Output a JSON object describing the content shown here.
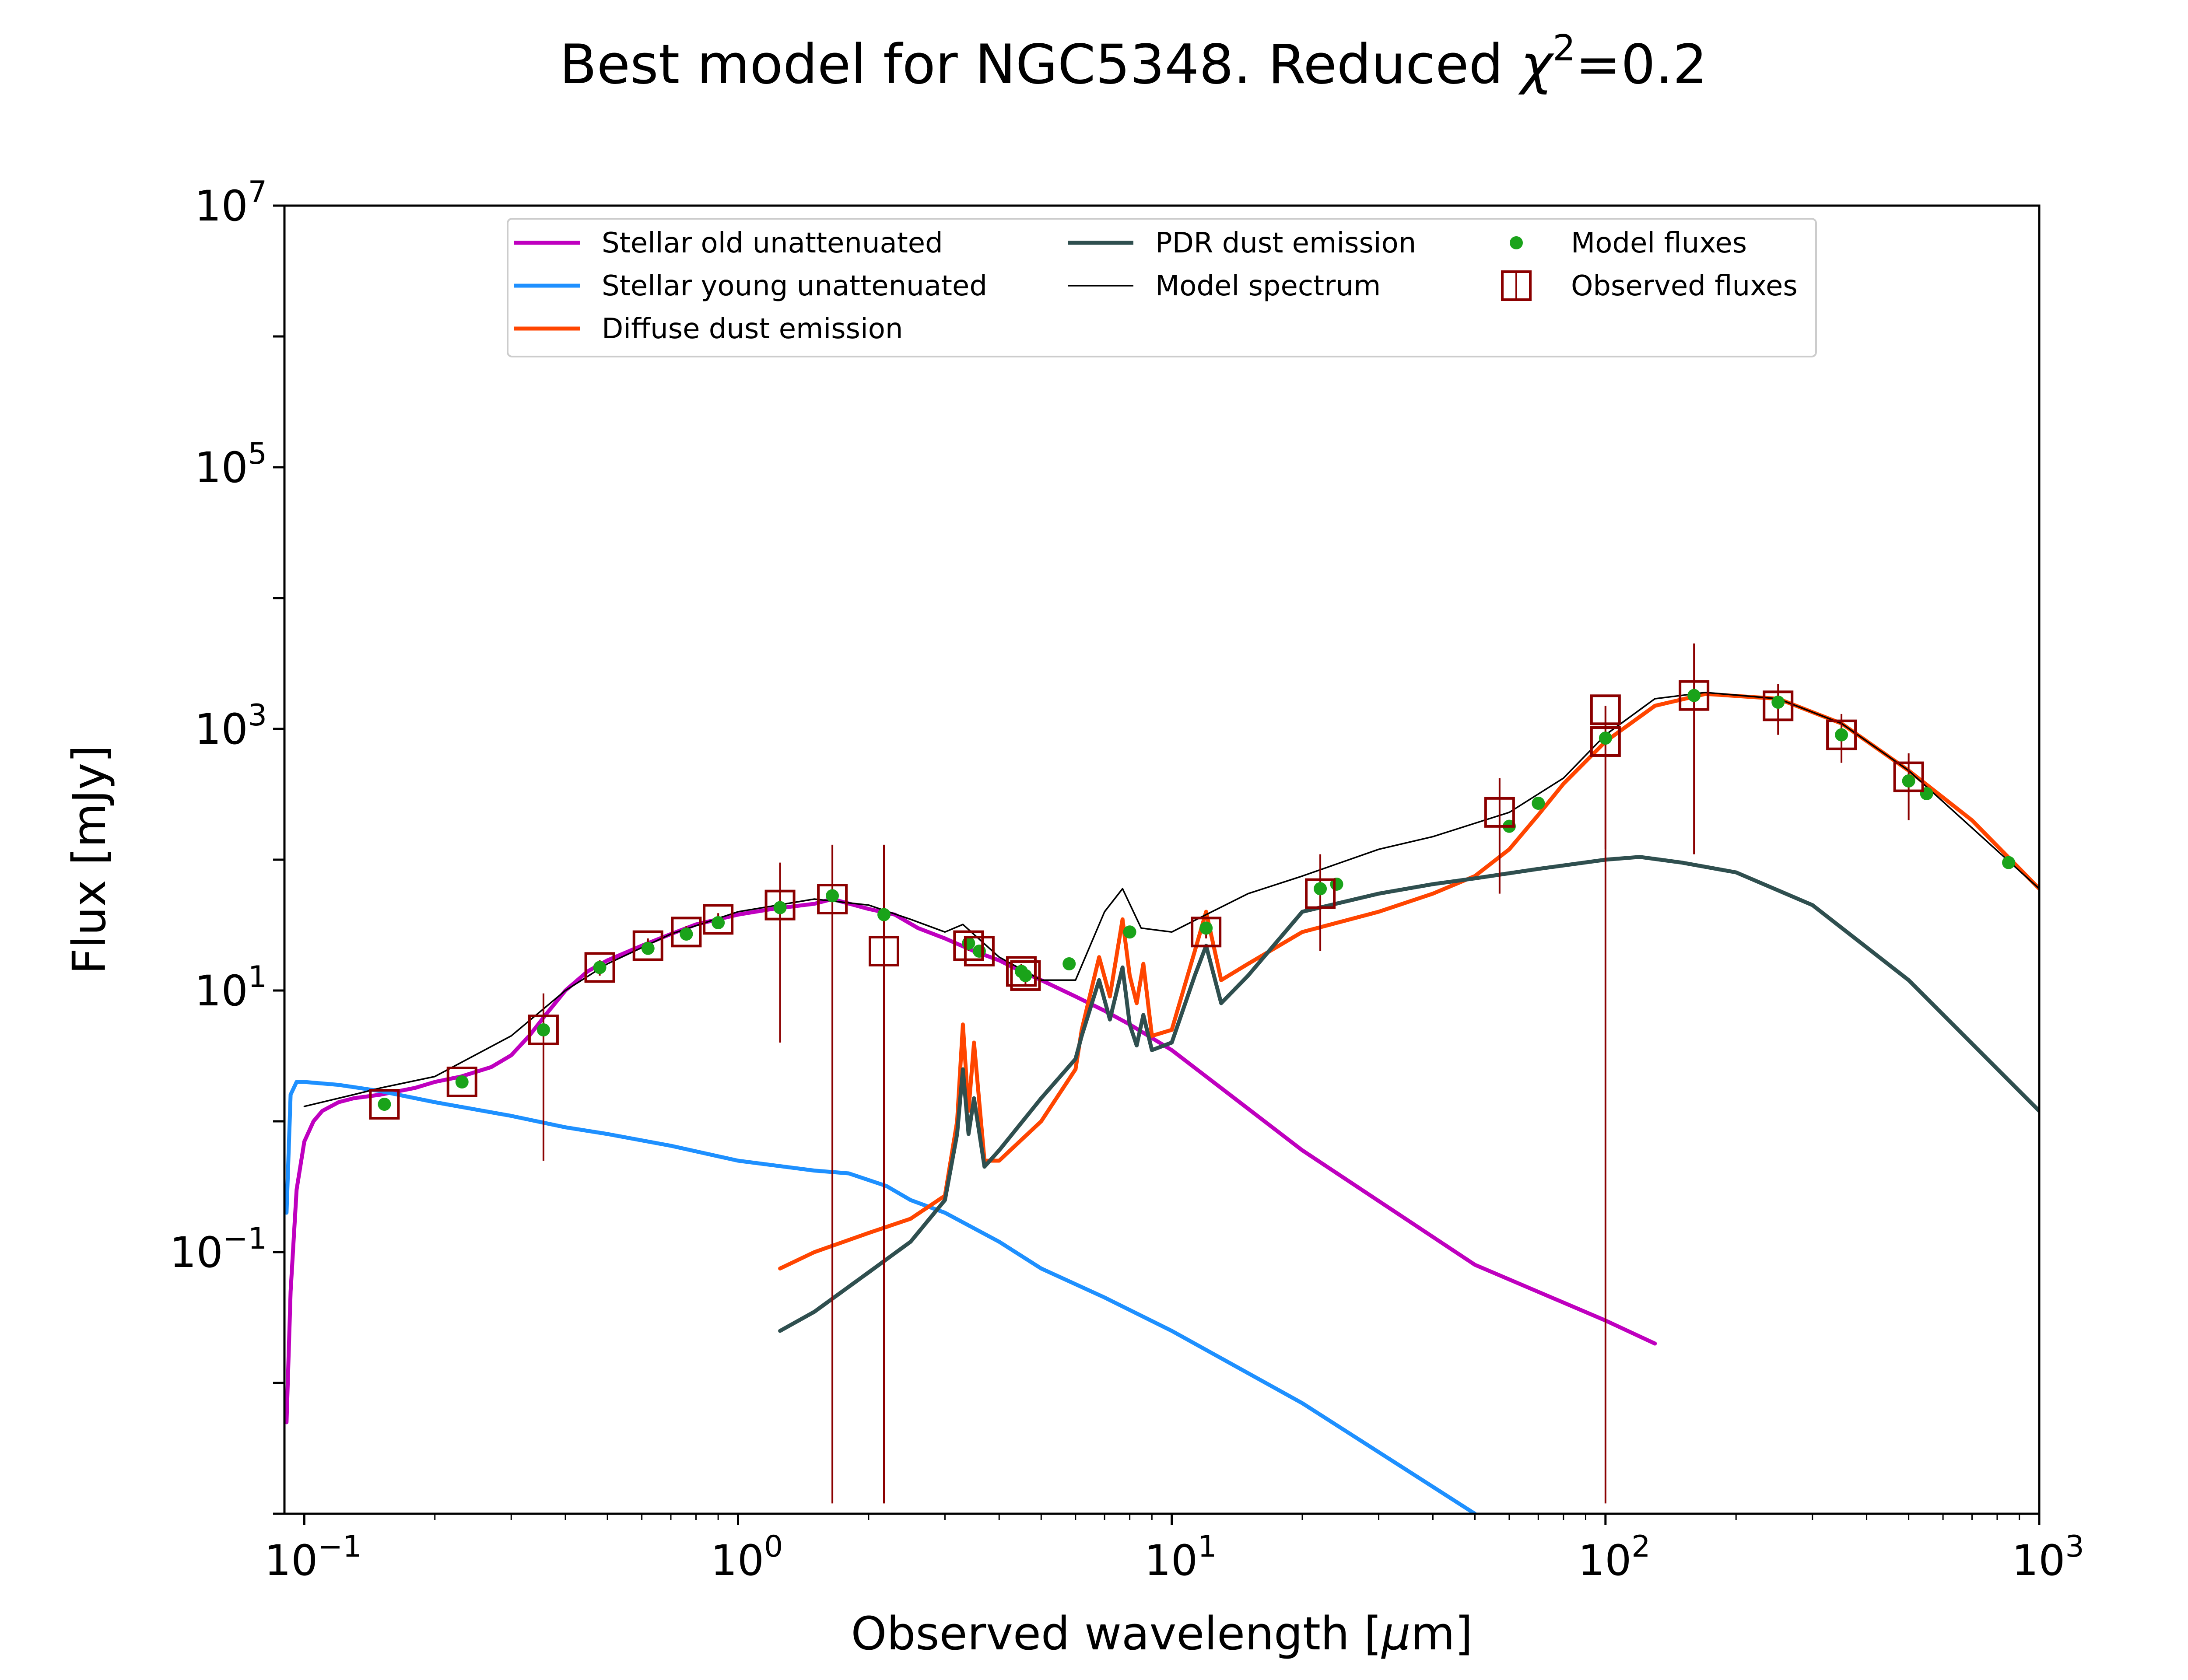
{
  "title": {
    "text": "Best model for NGC5348. Reduced ",
    "chi": "χ",
    "sup": "2",
    "tail": "=0.2"
  },
  "xlabel": {
    "pre": "Observed wavelength [",
    "mu": "μ",
    "post": "m]"
  },
  "ylabel": "Flux [mJy]",
  "x_ticks": [
    {
      "value": 0.1,
      "base": "10",
      "exp": "−1"
    },
    {
      "value": 1,
      "base": "10",
      "exp": "0"
    },
    {
      "value": 10,
      "base": "10",
      "exp": "1"
    },
    {
      "value": 100,
      "base": "10",
      "exp": "2"
    },
    {
      "value": 1000,
      "base": "10",
      "exp": "3"
    }
  ],
  "y_ticks": [
    {
      "value": 0.1,
      "base": "10",
      "exp": "−1"
    },
    {
      "value": 10,
      "base": "10",
      "exp": "1"
    },
    {
      "value": 1000,
      "base": "10",
      "exp": "3"
    },
    {
      "value": 100000,
      "base": "10",
      "exp": "5"
    },
    {
      "value": 10000000,
      "base": "10",
      "exp": "7"
    }
  ],
  "legend": [
    {
      "label": "Stellar old unattenuated",
      "kind": "line",
      "color": "#bf00bf",
      "width": 3
    },
    {
      "label": "Stellar young unattenuated",
      "kind": "line",
      "color": "#1e90ff",
      "width": 3
    },
    {
      "label": "Diffuse dust emission",
      "kind": "line",
      "color": "#ff4500",
      "width": 3
    },
    {
      "label": "PDR dust emission",
      "kind": "line",
      "color": "#2f4f4f",
      "width": 3
    },
    {
      "label": "Model spectrum",
      "kind": "line",
      "color": "#000000",
      "width": 1.2
    },
    {
      "label": "Model fluxes",
      "kind": "dot",
      "color": "#1aa31a"
    },
    {
      "label": "Observed fluxes",
      "kind": "square",
      "color": "#8b0000"
    }
  ],
  "chart_data": {
    "type": "line",
    "title": "Best model for NGC5348. Reduced χ²=0.2",
    "xlabel": "Observed wavelength [μm]",
    "ylabel": "Flux [mJy]",
    "xscale": "log",
    "yscale": "log",
    "xlim": [
      0.09,
      1000
    ],
    "ylim": [
      0.001,
      10000000
    ],
    "legend_position": "top-center",
    "series": [
      {
        "name": "Stellar old unattenuated",
        "color": "#bf00bf",
        "x": [
          0.091,
          0.093,
          0.096,
          0.1,
          0.105,
          0.11,
          0.12,
          0.13,
          0.15,
          0.18,
          0.2,
          0.23,
          0.27,
          0.3,
          0.33,
          0.36,
          0.4,
          0.45,
          0.5,
          0.6,
          0.7,
          0.8,
          1.0,
          1.2,
          1.5,
          1.65,
          2.0,
          2.3,
          2.6,
          3.0,
          3.5,
          4.0,
          4.5,
          5.0,
          6.0,
          7.0,
          8.0,
          10.0,
          20.0,
          50.0,
          100.0,
          130.0
        ],
        "y": [
          0.005,
          0.05,
          0.3,
          0.7,
          1.0,
          1.2,
          1.4,
          1.5,
          1.6,
          1.8,
          2.0,
          2.2,
          2.6,
          3.2,
          4.5,
          6.5,
          10,
          14,
          17,
          22,
          27,
          32,
          38,
          42,
          46,
          50,
          42,
          38,
          30,
          25,
          20,
          17,
          14,
          12,
          9,
          7,
          5.5,
          3.5,
          0.6,
          0.08,
          0.03,
          0.02
        ]
      },
      {
        "name": "Stellar young unattenuated",
        "color": "#1e90ff",
        "x": [
          0.091,
          0.093,
          0.096,
          0.1,
          0.12,
          0.15,
          0.2,
          0.3,
          0.4,
          0.5,
          0.7,
          1.0,
          1.5,
          1.8,
          2.2,
          2.5,
          3.0,
          4.0,
          5.0,
          7.0,
          10.0,
          20.0,
          50.0
        ],
        "y": [
          0.2,
          1.6,
          2.0,
          2.0,
          1.9,
          1.7,
          1.4,
          1.1,
          0.9,
          0.8,
          0.65,
          0.5,
          0.42,
          0.4,
          0.32,
          0.25,
          0.2,
          0.12,
          0.075,
          0.045,
          0.025,
          0.007,
          0.001
        ]
      },
      {
        "name": "Diffuse dust emission",
        "color": "#ff4500",
        "x": [
          1.25,
          1.5,
          2.0,
          2.5,
          3.0,
          3.2,
          3.3,
          3.4,
          3.5,
          3.7,
          4.0,
          5.0,
          6.0,
          6.2,
          6.8,
          7.2,
          7.7,
          8.0,
          8.3,
          8.6,
          9.0,
          10.0,
          11.3,
          12.0,
          13.0,
          15.0,
          20.0,
          30.0,
          40.0,
          50.0,
          60.0,
          70.0,
          80.0,
          100.0,
          130.0,
          170.0,
          250.0,
          350.0,
          500.0,
          700.0,
          1000.0
        ],
        "y": [
          0.075,
          0.1,
          0.14,
          0.18,
          0.27,
          1.0,
          5.5,
          1.2,
          4.0,
          0.5,
          0.5,
          1.0,
          2.5,
          5.0,
          18,
          9,
          35,
          13,
          8,
          16,
          4.5,
          5.0,
          20,
          40,
          12,
          16,
          28,
          40,
          55,
          75,
          120,
          220,
          380,
          800,
          1500,
          1850,
          1700,
          1100,
          480,
          200,
          60
        ]
      },
      {
        "name": "PDR dust emission",
        "color": "#2f4f4f",
        "x": [
          1.25,
          1.5,
          2.0,
          2.5,
          3.0,
          3.2,
          3.3,
          3.4,
          3.5,
          3.7,
          4.0,
          5.0,
          6.0,
          6.2,
          6.8,
          7.2,
          7.7,
          8.0,
          8.3,
          8.6,
          9.0,
          10.0,
          11.3,
          12.0,
          13.0,
          15.0,
          20.0,
          30.0,
          40.0,
          50.0,
          70.0,
          100.0,
          120.0,
          150.0,
          200.0,
          300.0,
          500.0,
          1000.0
        ],
        "y": [
          0.025,
          0.035,
          0.07,
          0.12,
          0.25,
          0.8,
          2.5,
          0.8,
          1.5,
          0.45,
          0.6,
          1.5,
          3.0,
          4.5,
          12,
          6,
          15,
          5.5,
          3.8,
          6.5,
          3.5,
          4.0,
          13,
          22,
          8,
          13,
          40,
          55,
          65,
          72,
          85,
          100,
          105,
          95,
          80,
          45,
          12,
          1.2
        ]
      },
      {
        "name": "Model spectrum",
        "color": "#000000",
        "x": [
          0.1,
          0.13,
          0.15,
          0.2,
          0.3,
          0.4,
          0.5,
          0.7,
          1.0,
          1.5,
          2.0,
          2.5,
          3.0,
          3.3,
          4.0,
          5.0,
          6.0,
          7.0,
          7.7,
          8.5,
          10.0,
          12.0,
          15.0,
          20.0,
          30.0,
          40.0,
          60.0,
          80.0,
          100.0,
          130.0,
          170.0,
          250.0,
          350.0,
          500.0,
          1000.0
        ],
        "y": [
          1.3,
          1.6,
          1.8,
          2.2,
          4.5,
          10,
          16,
          27,
          40,
          50,
          45,
          35,
          28,
          32,
          18,
          12,
          12,
          40,
          60,
          30,
          28,
          38,
          55,
          75,
          120,
          150,
          230,
          420,
          900,
          1700,
          1900,
          1700,
          1100,
          480,
          60
        ]
      }
    ],
    "model_fluxes": {
      "name": "Model fluxes",
      "x": [
        0.153,
        0.231,
        0.356,
        0.48,
        0.62,
        0.76,
        0.9,
        1.25,
        1.65,
        2.17,
        3.4,
        3.6,
        4.5,
        4.6,
        5.8,
        8.0,
        12.0,
        22.0,
        24.0,
        60.0,
        70.0,
        100.0,
        160.0,
        250.0,
        350.0,
        500.0,
        550.0,
        850.0
      ],
      "y": [
        1.35,
        2.0,
        5.0,
        15,
        21,
        27,
        33,
        43,
        53,
        38,
        23,
        20,
        14,
        13,
        16,
        28,
        30,
        60,
        65,
        180,
        270,
        850,
        1800,
        1600,
        900,
        400,
        320,
        95
      ]
    },
    "observed_fluxes": {
      "name": "Observed fluxes",
      "x": [
        0.153,
        0.231,
        0.356,
        0.48,
        0.62,
        0.76,
        0.9,
        1.25,
        1.65,
        2.17,
        3.4,
        3.6,
        4.5,
        4.6,
        12.0,
        22.0,
        57.0,
        100.0,
        100.0,
        160.0,
        250.0,
        350.0,
        500.0
      ],
      "y": [
        1.35,
        2.0,
        5.0,
        15,
        22,
        28,
        35,
        45,
        50,
        20,
        22,
        20,
        14,
        13,
        28,
        55,
        230,
        1400,
        800,
        1800,
        1500,
        900,
        430
      ],
      "y_err_low": [
        1.25,
        1.85,
        0.5,
        13,
        19,
        25,
        31,
        4,
        0.0012,
        0.0012,
        20,
        18,
        12,
        11,
        25,
        20,
        55,
        0.0012,
        120,
        110,
        900,
        550,
        200
      ],
      "y_err_high": [
        1.45,
        2.15,
        9.5,
        17,
        25,
        31,
        39,
        95,
        130,
        130,
        24,
        22,
        16,
        15,
        31,
        110,
        420,
        1500,
        1500,
        4500,
        2200,
        1300,
        650
      ]
    }
  }
}
